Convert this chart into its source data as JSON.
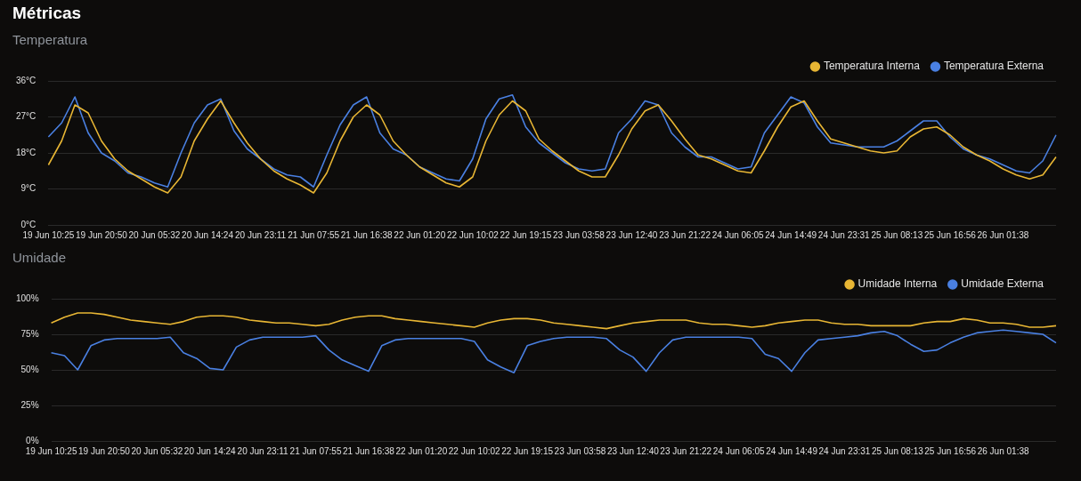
{
  "chart_data": [
    {
      "type": "other",
      "title": "Métricas"
    },
    {
      "type": "line",
      "title": "Temperatura",
      "categories": [
        "19 Jun 10:25",
        null,
        null,
        null,
        "19 Jun 20:50",
        null,
        null,
        null,
        "20 Jun 05:32",
        null,
        null,
        null,
        "20 Jun 14:24",
        null,
        null,
        null,
        "20 Jun 23:11",
        null,
        null,
        null,
        "21 Jun 07:55",
        null,
        null,
        null,
        "21 Jun 16:38",
        null,
        null,
        null,
        "22 Jun 01:20",
        null,
        null,
        null,
        "22 Jun 10:02",
        null,
        null,
        null,
        "22 Jun 19:15",
        null,
        null,
        null,
        "23 Jun 03:58",
        null,
        null,
        null,
        "23 Jun 12:40",
        null,
        null,
        null,
        "23 Jun 21:22",
        null,
        null,
        null,
        "24 Jun 06:05",
        null,
        null,
        null,
        "24 Jun 14:49",
        null,
        null,
        null,
        "24 Jun 23:31",
        null,
        null,
        null,
        "25 Jun 08:13",
        null,
        null,
        null,
        "25 Jun 16:56",
        null,
        null,
        null,
        "26 Jun 01:38",
        null,
        null,
        null,
        null
      ],
      "series": [
        {
          "name": "Temperatura Interna",
          "color": "#e8b634",
          "values": [
            15,
            21,
            30,
            28,
            21,
            16.5,
            13.5,
            11.5,
            9.5,
            8,
            12,
            21,
            26.5,
            31,
            25.5,
            20.5,
            16.5,
            13.5,
            11.5,
            10,
            8,
            13,
            21,
            27,
            30,
            27.5,
            21,
            17.5,
            14.5,
            12.5,
            10.5,
            9.5,
            12,
            21,
            27.5,
            31,
            28.5,
            21.5,
            18.5,
            16,
            13.5,
            12,
            12,
            17.5,
            24,
            28.5,
            30,
            26,
            21.5,
            17.5,
            16.5,
            15,
            13.5,
            13,
            18.5,
            24.5,
            29.5,
            31,
            26,
            21.5,
            20.5,
            19.5,
            18.5,
            18,
            18.5,
            22,
            24,
            24.5,
            22.5,
            19.5,
            17.5,
            16,
            14,
            12.5,
            11.5,
            12.5,
            17
          ]
        },
        {
          "name": "Temperatura Externa",
          "color": "#4a80e2",
          "values": [
            22,
            25.5,
            32,
            23,
            18,
            16,
            13,
            12,
            10.5,
            9.5,
            18,
            25.5,
            30,
            31.5,
            23.5,
            19,
            16.5,
            14,
            12.5,
            12,
            9.5,
            17.5,
            25,
            30,
            32,
            23,
            19,
            17.5,
            14.5,
            13,
            11.5,
            11,
            16.5,
            26.5,
            31.5,
            32.5,
            24.5,
            20.5,
            18,
            15.5,
            14,
            13.5,
            14,
            23,
            26.5,
            31,
            30,
            23,
            19.5,
            17,
            17,
            15.5,
            14,
            14.5,
            23,
            27.5,
            32,
            30.5,
            24.5,
            20.5,
            20,
            19.5,
            19.5,
            19.5,
            21,
            23.5,
            26,
            26,
            22,
            19,
            17.5,
            16.5,
            15,
            13.5,
            13,
            16,
            22.5
          ]
        }
      ],
      "ylim": [
        0,
        36
      ],
      "yticks": [
        {
          "value": 0,
          "label": "0°C"
        },
        {
          "value": 9,
          "label": "9°C"
        },
        {
          "value": 18,
          "label": "18°C"
        },
        {
          "value": 27,
          "label": "27°C"
        },
        {
          "value": 36,
          "label": "36°C"
        }
      ],
      "grid": "y",
      "legend": "top right",
      "marker": "none",
      "line_style": "solid"
    },
    {
      "type": "line",
      "title": "Umidade",
      "categories": [
        "19 Jun 10:25",
        null,
        null,
        null,
        "19 Jun 20:50",
        null,
        null,
        null,
        "20 Jun 05:32",
        null,
        null,
        null,
        "20 Jun 14:24",
        null,
        null,
        null,
        "20 Jun 23:11",
        null,
        null,
        null,
        "21 Jun 07:55",
        null,
        null,
        null,
        "21 Jun 16:38",
        null,
        null,
        null,
        "22 Jun 01:20",
        null,
        null,
        null,
        "22 Jun 10:02",
        null,
        null,
        null,
        "22 Jun 19:15",
        null,
        null,
        null,
        "23 Jun 03:58",
        null,
        null,
        null,
        "23 Jun 12:40",
        null,
        null,
        null,
        "23 Jun 21:22",
        null,
        null,
        null,
        "24 Jun 06:05",
        null,
        null,
        null,
        "24 Jun 14:49",
        null,
        null,
        null,
        "24 Jun 23:31",
        null,
        null,
        null,
        "25 Jun 08:13",
        null,
        null,
        null,
        "25 Jun 16:56",
        null,
        null,
        null,
        "26 Jun 01:38",
        null,
        null,
        null,
        null
      ],
      "series": [
        {
          "name": "Umidade Interna",
          "color": "#e8b634",
          "values": [
            83,
            87,
            90,
            90,
            89,
            87,
            85,
            84,
            83,
            82,
            84,
            87,
            88,
            88,
            87,
            85,
            84,
            83,
            83,
            82,
            81,
            82,
            85,
            87,
            88,
            88,
            86,
            85,
            84,
            83,
            82,
            81,
            80,
            83,
            85,
            86,
            86,
            85,
            83,
            82,
            81,
            80,
            79,
            81,
            83,
            84,
            85,
            85,
            85,
            83,
            82,
            82,
            81,
            80,
            81,
            83,
            84,
            85,
            85,
            83,
            82,
            82,
            81,
            81,
            81,
            81,
            83,
            84,
            84,
            86,
            85,
            83,
            83,
            82,
            80,
            80,
            81
          ]
        },
        {
          "name": "Umidade Externa",
          "color": "#4a80e2",
          "values": [
            62,
            60,
            50,
            67,
            71,
            72,
            72,
            72,
            72,
            73,
            62,
            58,
            51,
            50,
            66,
            71,
            73,
            73,
            73,
            73,
            74,
            64,
            57,
            53,
            49,
            67,
            71,
            72,
            72,
            72,
            72,
            72,
            70,
            57,
            52,
            48,
            67,
            70,
            72,
            73,
            73,
            73,
            72,
            64,
            59,
            49,
            62,
            71,
            73,
            73,
            73,
            73,
            73,
            72,
            61,
            58,
            49,
            62,
            71,
            72,
            73,
            74,
            76,
            77,
            74,
            68,
            63,
            64,
            69,
            73,
            76,
            77,
            78,
            77,
            76,
            75,
            69
          ]
        }
      ],
      "ylim": [
        0,
        100
      ],
      "yticks": [
        {
          "value": 0,
          "label": "0%"
        },
        {
          "value": 25,
          "label": "25%"
        },
        {
          "value": 50,
          "label": "50%"
        },
        {
          "value": 75,
          "label": "75%"
        },
        {
          "value": 100,
          "label": "100%"
        }
      ],
      "grid": "y",
      "legend": "top right",
      "marker": "none",
      "line_style": "solid"
    }
  ]
}
